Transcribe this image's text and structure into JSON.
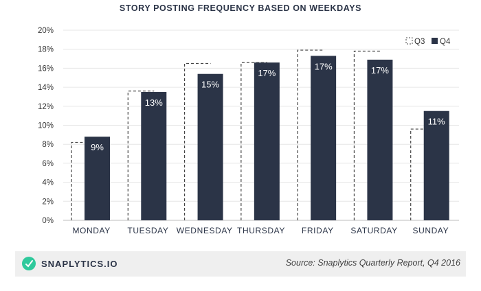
{
  "chart_data": {
    "type": "bar",
    "title": "STORY POSTING FREQUENCY BASED ON WEEKDAYS",
    "categories": [
      "MONDAY",
      "TUESDAY",
      "WEDNESDAY",
      "THURSDAY",
      "FRIDAY",
      "SATURDAY",
      "SUNDAY"
    ],
    "series": [
      {
        "name": "Q3",
        "values": [
          8.2,
          13.6,
          16.5,
          16.6,
          17.9,
          17.8,
          9.6
        ],
        "style": "dashed-outline"
      },
      {
        "name": "Q4",
        "values": [
          8.8,
          13.5,
          15.4,
          16.6,
          17.3,
          16.9,
          11.5
        ],
        "style": "filled"
      }
    ],
    "data_labels": [
      "9%",
      "13%",
      "15%",
      "17%",
      "17%",
      "17%",
      "11%"
    ],
    "yticks": [
      "0%",
      "2%",
      "4%",
      "6%",
      "8%",
      "10%",
      "12%",
      "14%",
      "16%",
      "18%",
      "20%"
    ],
    "ylim": [
      0,
      20
    ],
    "legend": [
      "Q3",
      "Q4"
    ],
    "legend_position": "top-right",
    "colors": {
      "q4": "#2b3447",
      "q3_border": "#444444",
      "title": "#2b3447"
    }
  },
  "footer": {
    "brand": "SNAPLYTICS.IO",
    "source": "Source: Snaplytics Quarterly Report, Q4 2016",
    "logo_icon": "snaplytics-logo-icon"
  }
}
